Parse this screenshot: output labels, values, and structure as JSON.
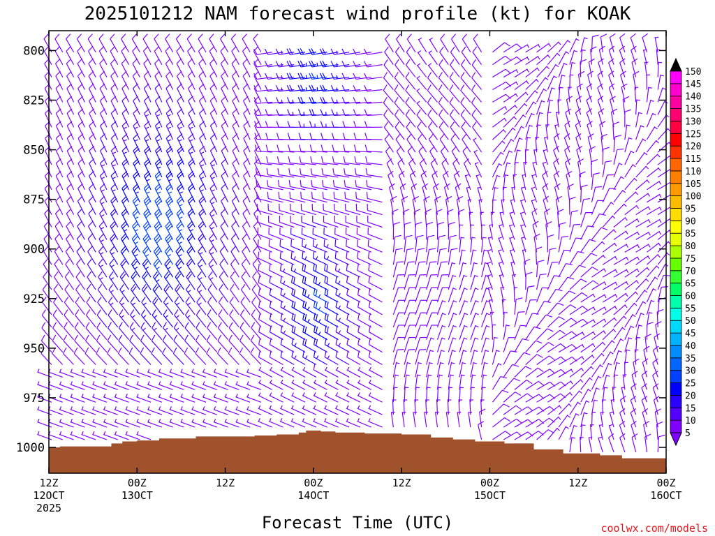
{
  "chart_data": {
    "type": "wind-barb-profile",
    "title": "2025101212 NAM forecast wind profile (kt) for KOAK",
    "xlabel": "Forecast Time (UTC)",
    "ylabel": "",
    "credit": "coolwx.com/models",
    "x_range_hours": [
      0,
      84
    ],
    "y_range_hpa": [
      790,
      1013
    ],
    "y_ticks": [
      800,
      825,
      850,
      875,
      900,
      925,
      950,
      975,
      1000
    ],
    "x_ticks": [
      {
        "hour": 0,
        "line1": "12Z",
        "line2": "12OCT",
        "line3": "2025"
      },
      {
        "hour": 12,
        "line1": "00Z",
        "line2": "13OCT",
        "line3": ""
      },
      {
        "hour": 24,
        "line1": "12Z",
        "line2": "",
        "line3": ""
      },
      {
        "hour": 36,
        "line1": "00Z",
        "line2": "14OCT",
        "line3": ""
      },
      {
        "hour": 48,
        "line1": "12Z",
        "line2": "",
        "line3": ""
      },
      {
        "hour": 60,
        "line1": "00Z",
        "line2": "15OCT",
        "line3": ""
      },
      {
        "hour": 72,
        "line1": "12Z",
        "line2": "",
        "line3": ""
      },
      {
        "hour": 84,
        "line1": "00Z",
        "line2": "16OCT",
        "line3": ""
      }
    ],
    "colorbar": {
      "levels": [
        5,
        10,
        15,
        20,
        25,
        30,
        35,
        40,
        45,
        50,
        55,
        60,
        65,
        70,
        75,
        80,
        85,
        90,
        95,
        100,
        105,
        110,
        115,
        120,
        125,
        130,
        135,
        140,
        145,
        150
      ],
      "colors": [
        "#7f00ff",
        "#5500ff",
        "#2a00ff",
        "#0000ff",
        "#0040ff",
        "#0066ff",
        "#008cff",
        "#00b3ff",
        "#00d9ff",
        "#00ffe6",
        "#00ffaa",
        "#00ff66",
        "#33ff33",
        "#66ff00",
        "#aaff00",
        "#e6ff00",
        "#ffff00",
        "#ffdd00",
        "#ffbb00",
        "#ff9900",
        "#ff8000",
        "#ff6600",
        "#ff3300",
        "#ff0000",
        "#ff0040",
        "#ff0070",
        "#ff00a0",
        "#ff00cc",
        "#ff00ff"
      ],
      "min_arrow_color": "#7f00ff",
      "max_arrow_color": "#000000"
    },
    "surface_color": "#a0522d",
    "surface_pressure_hpa": [
      {
        "hour": 0,
        "p": 1000
      },
      {
        "hour": 1.5,
        "p": 999.5
      },
      {
        "hour": 7.5,
        "p": 999.5
      },
      {
        "hour": 8.5,
        "p": 998
      },
      {
        "hour": 10,
        "p": 997
      },
      {
        "hour": 12,
        "p": 996.5
      },
      {
        "hour": 15,
        "p": 995.5
      },
      {
        "hour": 20,
        "p": 994.5
      },
      {
        "hour": 28,
        "p": 994
      },
      {
        "hour": 31,
        "p": 993.5
      },
      {
        "hour": 34,
        "p": 992.5
      },
      {
        "hour": 35,
        "p": 991.5
      },
      {
        "hour": 37,
        "p": 992
      },
      {
        "hour": 39,
        "p": 992.5
      },
      {
        "hour": 43,
        "p": 993
      },
      {
        "hour": 48,
        "p": 993.5
      },
      {
        "hour": 52,
        "p": 995
      },
      {
        "hour": 55,
        "p": 996
      },
      {
        "hour": 58,
        "p": 997
      },
      {
        "hour": 62,
        "p": 998
      },
      {
        "hour": 66,
        "p": 1001
      },
      {
        "hour": 70,
        "p": 1003
      },
      {
        "hour": 75,
        "p": 1004
      },
      {
        "hour": 78,
        "p": 1005.5
      },
      {
        "hour": 84,
        "p": 1006
      }
    ],
    "wind_field_summary": {
      "times_hours": [
        0,
        1.5,
        3,
        4.5,
        6,
        7.5,
        9,
        10.5,
        12,
        13.5,
        15,
        16.5,
        18,
        19.5,
        21,
        22.5,
        24,
        25.5,
        27,
        28.5,
        30,
        31.5,
        33,
        34.5,
        36,
        37.5,
        39,
        40.5,
        42,
        43.5,
        45,
        46.5,
        48,
        49.5,
        51,
        52.5,
        54,
        55.5,
        57,
        58.5,
        60,
        61.5,
        63,
        64.5,
        66,
        67.5,
        69,
        70.5,
        72,
        73.5,
        75,
        76.5,
        78,
        79.5,
        81,
        82.5,
        84
      ],
      "levels_hpa": [
        800,
        812.5,
        825,
        837.5,
        850,
        862.5,
        875,
        887.5,
        900,
        912.5,
        925,
        937.5,
        950,
        962.5,
        975,
        987.5
      ],
      "note": "Wind barbs colored by speed (kt). Strongest winds ~25-35 kt around 06-24Z Oct 12-13 between 850-925 hPa; lighter northerly/northwesterly flow later."
    }
  }
}
